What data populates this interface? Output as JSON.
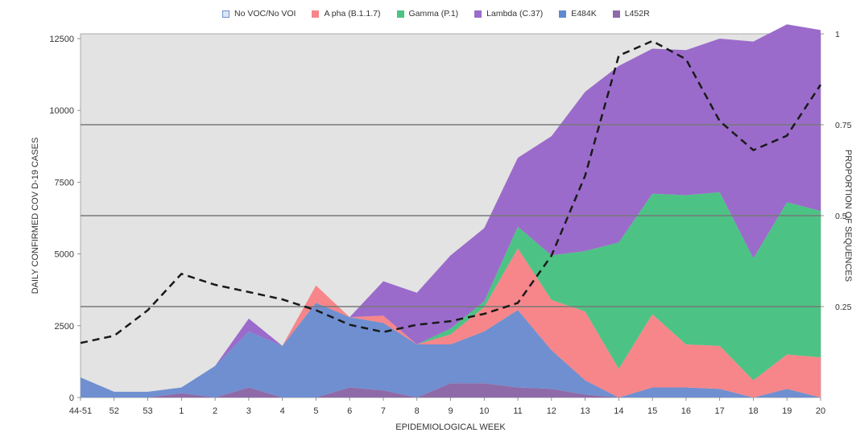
{
  "chart_data": {
    "type": "area",
    "categories": [
      "44-51",
      "52",
      "53",
      "1",
      "2",
      "3",
      "4",
      "5",
      "6",
      "7",
      "8",
      "9",
      "10",
      "11",
      "12",
      "13",
      "14",
      "15",
      "16",
      "17",
      "18",
      "19",
      "20"
    ],
    "xlabel": "EPIDEMIOLOGICAL WEEK",
    "ylabel": "DAILY CONFIRMED COV D-19 CASES",
    "y2label": "PROPORTION OF SEQUENCES",
    "ylim": [
      0,
      12500
    ],
    "yticks": [
      "0",
      "2500",
      "5000",
      "7500",
      "10000",
      "12500"
    ],
    "y2lim": [
      0,
      1
    ],
    "y2ticks": [
      "0.25",
      "0.5",
      "0.75",
      "1"
    ],
    "stacked": true,
    "legend_position": "top",
    "series": [
      {
        "name": "L452R",
        "color": "#8f6aa8",
        "values": [
          0,
          0,
          0,
          150,
          0,
          350,
          0,
          0,
          350,
          250,
          0,
          500,
          500,
          350,
          300,
          100,
          0,
          0,
          0,
          0,
          0,
          0,
          0
        ]
      },
      {
        "name": "No VOC/No VOI",
        "color": "#6f8fd0",
        "values": [
          700,
          200,
          200,
          200,
          1100,
          1950,
          1800,
          3300,
          2450,
          2350,
          1850,
          1350,
          1800,
          2700,
          1350,
          500,
          0,
          350,
          350,
          300,
          0,
          300,
          0
        ]
      },
      {
        "name": "A pha (B.1.1.7)",
        "color": "#f6868a",
        "values": [
          0,
          0,
          0,
          0,
          0,
          0,
          0,
          600,
          0,
          250,
          0,
          350,
          850,
          2150,
          1750,
          2400,
          1000,
          2550,
          1500,
          1500,
          600,
          1200,
          1400
        ]
      },
      {
        "name": "Gamma (P.1)",
        "color": "#4cc384",
        "values": [
          0,
          0,
          0,
          0,
          0,
          0,
          0,
          0,
          0,
          0,
          0,
          200,
          200,
          750,
          1550,
          2100,
          4400,
          4200,
          5200,
          5350,
          4250,
          5300,
          5100
        ]
      },
      {
        "name": "Lambda (C.37)",
        "color": "#9b6bcb",
        "values": [
          0,
          0,
          0,
          0,
          0,
          450,
          0,
          0,
          0,
          1200,
          1800,
          2550,
          2550,
          2400,
          4150,
          5550,
          6150,
          5050,
          5050,
          5350,
          7550,
          6200,
          6300
        ]
      },
      {
        "name": "E484K",
        "color": "#5f8ad0",
        "values": [
          0,
          0,
          0,
          0,
          0,
          0,
          0,
          0,
          0,
          0,
          0,
          0,
          0,
          0,
          0,
          0,
          0,
          0,
          0,
          0,
          0,
          0,
          0
        ]
      }
    ],
    "proportion_line": {
      "style": "dashed",
      "color": "#1a1a1a",
      "axis": "right",
      "values": [
        0.15,
        0.17,
        0.24,
        0.34,
        0.31,
        0.29,
        0.27,
        0.24,
        0.2,
        0.18,
        0.2,
        0.21,
        0.23,
        0.26,
        0.39,
        0.61,
        0.94,
        0.98,
        0.93,
        0.76,
        0.68,
        0.72,
        0.86
      ]
    },
    "reference_lines": {
      "axis": "right",
      "values": [
        0.25,
        0.5,
        0.75
      ]
    },
    "legend": [
      {
        "label": "No VOC/No VOI",
        "color": "#dce6f5",
        "border": "#6f8fd0"
      },
      {
        "label": "A pha (B.1.1.7)",
        "color": "#f6868a"
      },
      {
        "label": "Gamma (P.1)",
        "color": "#4cc384"
      },
      {
        "label": "Lambda (C.37)",
        "color": "#9b6bcb"
      },
      {
        "label": "E484K",
        "color": "#5f8ad0"
      },
      {
        "label": "L452R",
        "color": "#8f6aa8"
      }
    ],
    "plot_background": "#e3e3e3"
  }
}
